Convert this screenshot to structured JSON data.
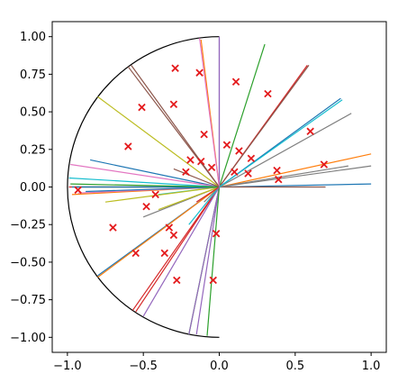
{
  "chart_data": {
    "type": "scatter",
    "title": "",
    "xlabel": "",
    "ylabel": "",
    "xlim": [
      -1.1,
      1.1
    ],
    "ylim": [
      -1.1,
      1.1
    ],
    "grid": false,
    "legend": "none",
    "x_ticks": [
      {
        "value": -1.0,
        "label": "−1.0"
      },
      {
        "value": -0.5,
        "label": "−0.5"
      },
      {
        "value": 0.0,
        "label": "0.0"
      },
      {
        "value": 0.5,
        "label": "0.5"
      },
      {
        "value": 1.0,
        "label": "1.0"
      }
    ],
    "y_ticks": [
      {
        "value": 1.0,
        "label": "1.00"
      },
      {
        "value": 0.75,
        "label": "0.75"
      },
      {
        "value": 0.5,
        "label": "0.50"
      },
      {
        "value": 0.25,
        "label": "0.25"
      },
      {
        "value": 0.0,
        "label": "0.00"
      },
      {
        "value": -0.25,
        "label": "−0.25"
      },
      {
        "value": -0.5,
        "label": "−0.50"
      },
      {
        "value": -0.75,
        "label": "−0.75"
      },
      {
        "value": -1.0,
        "label": "−1.00"
      }
    ],
    "boundary": {
      "shape": "half-disk",
      "arc_center": [
        0,
        0
      ],
      "arc_radius": 1,
      "arc_start_deg": 90,
      "arc_end_deg": 270,
      "color": "#000000"
    },
    "points": {
      "marker": "x",
      "color": "#e41a1c",
      "x": [
        -0.29,
        -0.13,
        0.11,
        -0.51,
        -0.3,
        0.32,
        -0.6,
        -0.1,
        0.6,
        0.05,
        0.13,
        -0.19,
        -0.12,
        0.21,
        0.69,
        0.38,
        -0.22,
        -0.05,
        0.1,
        0.19,
        0.39,
        -0.42,
        -0.48,
        -0.33,
        -0.7,
        -0.55,
        -0.36,
        -0.3,
        -0.02,
        -0.28,
        -0.04,
        -0.93
      ],
      "y": [
        0.79,
        0.76,
        0.7,
        0.53,
        0.55,
        0.62,
        0.27,
        0.35,
        0.37,
        0.28,
        0.24,
        0.18,
        0.17,
        0.19,
        0.15,
        0.11,
        0.1,
        0.13,
        0.1,
        0.09,
        0.05,
        -0.05,
        -0.13,
        -0.27,
        -0.27,
        -0.44,
        -0.44,
        -0.32,
        -0.31,
        -0.62,
        -0.62,
        -0.02
      ]
    },
    "series": [
      {
        "color": "#1f77b4",
        "x": [
          -0.85,
          0.0,
          1.0
        ],
        "y": [
          0.18,
          0.0,
          0.02
        ]
      },
      {
        "color": "#ff7f0e",
        "x": [
          -0.97,
          0.0,
          1.0
        ],
        "y": [
          -0.05,
          0.0,
          0.22
        ]
      },
      {
        "color": "#2ca02c",
        "x": [
          -0.2,
          0.0,
          0.3
        ],
        "y": [
          -0.98,
          0.0,
          0.95
        ]
      },
      {
        "color": "#d62728",
        "x": [
          -0.57,
          0.0,
          0.58
        ],
        "y": [
          -0.82,
          0.0,
          0.81
        ]
      },
      {
        "color": "#9467bd",
        "x": [
          -0.15,
          0.0,
          0.0
        ],
        "y": [
          -0.98,
          0.0,
          0.99
        ]
      },
      {
        "color": "#8c564b",
        "x": [
          -0.6,
          0.0,
          0.0
        ],
        "y": [
          0.8,
          0.0,
          0.0
        ]
      },
      {
        "color": "#e377c2",
        "x": [
          -0.98,
          0.0,
          0.0
        ],
        "y": [
          0.15,
          0.0,
          0.0
        ]
      },
      {
        "color": "#7f7f7f",
        "x": [
          -0.1,
          0.0,
          0.87
        ],
        "y": [
          -0.1,
          0.0,
          0.49
        ]
      },
      {
        "color": "#bcbd22",
        "x": [
          -0.8,
          0.0,
          0.0
        ],
        "y": [
          0.6,
          0.0,
          0.0
        ]
      },
      {
        "color": "#17becf",
        "x": [
          -0.99,
          0.0,
          0.0
        ],
        "y": [
          0.06,
          0.0,
          0.0
        ]
      },
      {
        "color": "#1f77b4",
        "x": [
          -0.8,
          0.0,
          0.8
        ],
        "y": [
          -0.59,
          0.0,
          0.59
        ]
      },
      {
        "color": "#ff7f0e",
        "x": [
          -0.12,
          0.0,
          0.0
        ],
        "y": [
          0.98,
          0.0,
          0.0
        ]
      },
      {
        "color": "#2ca02c",
        "x": [
          -0.95,
          0.0,
          0.0
        ],
        "y": [
          0.0,
          0.0,
          0.0
        ]
      },
      {
        "color": "#d62728",
        "x": [
          -0.99,
          0.0,
          0.0
        ],
        "y": [
          0.0,
          0.0,
          0.0
        ]
      },
      {
        "color": "#9467bd",
        "x": [
          -0.2,
          0.0,
          0.0
        ],
        "y": [
          -0.98,
          0.0,
          0.0
        ]
      },
      {
        "color": "#8c564b",
        "x": [
          -0.58,
          0.0,
          0.59
        ],
        "y": [
          0.81,
          0.0,
          0.81
        ]
      },
      {
        "color": "#e377c2",
        "x": [
          -0.93,
          0.0,
          0.0
        ],
        "y": [
          -0.04,
          0.0,
          0.0
        ]
      },
      {
        "color": "#7f7f7f",
        "x": [
          -0.5,
          0.0,
          1.0
        ],
        "y": [
          -0.2,
          0.0,
          0.14
        ]
      },
      {
        "color": "#bcbd22",
        "x": [
          -0.4,
          0.0,
          0.0
        ],
        "y": [
          -0.15,
          0.0,
          0.0
        ]
      },
      {
        "color": "#17becf",
        "x": [
          -0.4,
          0.0,
          0.0
        ],
        "y": [
          -0.05,
          0.0,
          0.0
        ]
      },
      {
        "color": "#1f77b4",
        "x": [
          -0.97,
          0.0,
          0.0
        ],
        "y": [
          0.0,
          0.0,
          0.0
        ]
      },
      {
        "color": "#ff7f0e",
        "x": [
          -0.8,
          0.0,
          0.0
        ],
        "y": [
          -0.6,
          0.0,
          0.0
        ]
      },
      {
        "color": "#2ca02c",
        "x": [
          -0.08,
          0.0,
          0.0
        ],
        "y": [
          -0.99,
          0.0,
          0.0
        ]
      },
      {
        "color": "#d62728",
        "x": [
          -0.55,
          0.0,
          0.0
        ],
        "y": [
          -0.83,
          0.0,
          0.0
        ]
      },
      {
        "color": "#9467bd",
        "x": [
          0.0,
          0.0,
          0.0
        ],
        "y": [
          1.0,
          0.0,
          0.0
        ]
      },
      {
        "color": "#8c564b",
        "x": [
          0.0,
          0.0,
          0.7
        ],
        "y": [
          0.0,
          0.0,
          0.0
        ]
      },
      {
        "color": "#e377c2",
        "x": [
          -0.13,
          0.0,
          0.0
        ],
        "y": [
          0.99,
          0.0,
          0.0
        ]
      },
      {
        "color": "#7f7f7f",
        "x": [
          0.0,
          0.0,
          0.85
        ],
        "y": [
          0.0,
          0.0,
          0.14
        ]
      },
      {
        "color": "#bcbd22",
        "x": [
          -0.75,
          0.0,
          0.0
        ],
        "y": [
          -0.1,
          0.0,
          0.0
        ]
      },
      {
        "color": "#17becf",
        "x": [
          -0.2,
          0.0,
          0.0
        ],
        "y": [
          -0.25,
          0.0,
          0.0
        ]
      },
      {
        "color": "#1f77b4",
        "x": [
          -0.88,
          0.0,
          0.0
        ],
        "y": [
          -0.03,
          0.0,
          0.0
        ]
      },
      {
        "color": "#ff7f0e",
        "x": [
          0.0,
          0.0,
          0.0
        ],
        "y": [
          0.0,
          0.0,
          0.0
        ]
      },
      {
        "color": "#2ca02c",
        "x": [
          -0.98,
          0.0,
          0.0
        ],
        "y": [
          0.02,
          0.0,
          0.0
        ]
      },
      {
        "color": "#d62728",
        "x": [
          -0.15,
          0.0,
          0.0
        ],
        "y": [
          -0.1,
          0.0,
          0.0
        ]
      },
      {
        "color": "#9467bd",
        "x": [
          -0.5,
          0.0,
          0.0
        ],
        "y": [
          -0.86,
          0.0,
          0.0
        ]
      },
      {
        "color": "#8c564b",
        "x": [
          -0.3,
          0.0,
          0.0
        ],
        "y": [
          0.12,
          0.0,
          0.0
        ]
      },
      {
        "color": "#17becf",
        "x": [
          0.0,
          0.0,
          0.81
        ],
        "y": [
          0.0,
          0.0,
          0.58
        ]
      }
    ]
  }
}
